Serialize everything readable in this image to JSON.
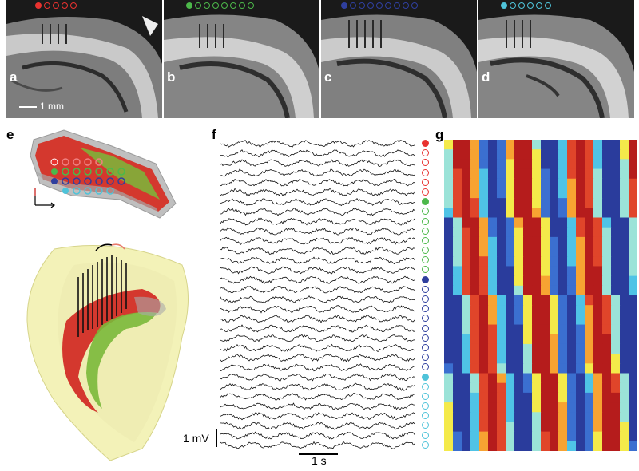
{
  "panels": {
    "a": {
      "label": "a",
      "marker_color": "#e8322f",
      "scale_text": "1 mm"
    },
    "b": {
      "label": "b",
      "marker_color": "#4cb84a"
    },
    "c": {
      "label": "c",
      "marker_color": "#2f3f9e"
    },
    "d": {
      "label": "d",
      "marker_color": "#4fc3d9"
    },
    "e": {
      "label": "e"
    },
    "f": {
      "label": "f",
      "mv_scale": "1 mV",
      "time_scale": "1 s"
    },
    "g": {
      "label": "g"
    }
  },
  "electrode_groups": [
    {
      "name": "red",
      "color": "#e8322f",
      "count": 6
    },
    {
      "name": "green",
      "color": "#4cb84a",
      "count": 8
    },
    {
      "name": "blue",
      "color": "#2f3f9e",
      "count": 10
    },
    {
      "name": "cyan",
      "color": "#4fc3d9",
      "count": 8
    }
  ],
  "colors": {
    "hippocampus_red": "#d9342b",
    "hippocampus_green": "#7ab83a",
    "brain_shell": "#f3f2b8",
    "heat_hot": "#c81e1e",
    "heat_cold": "#2a3c9c"
  }
}
